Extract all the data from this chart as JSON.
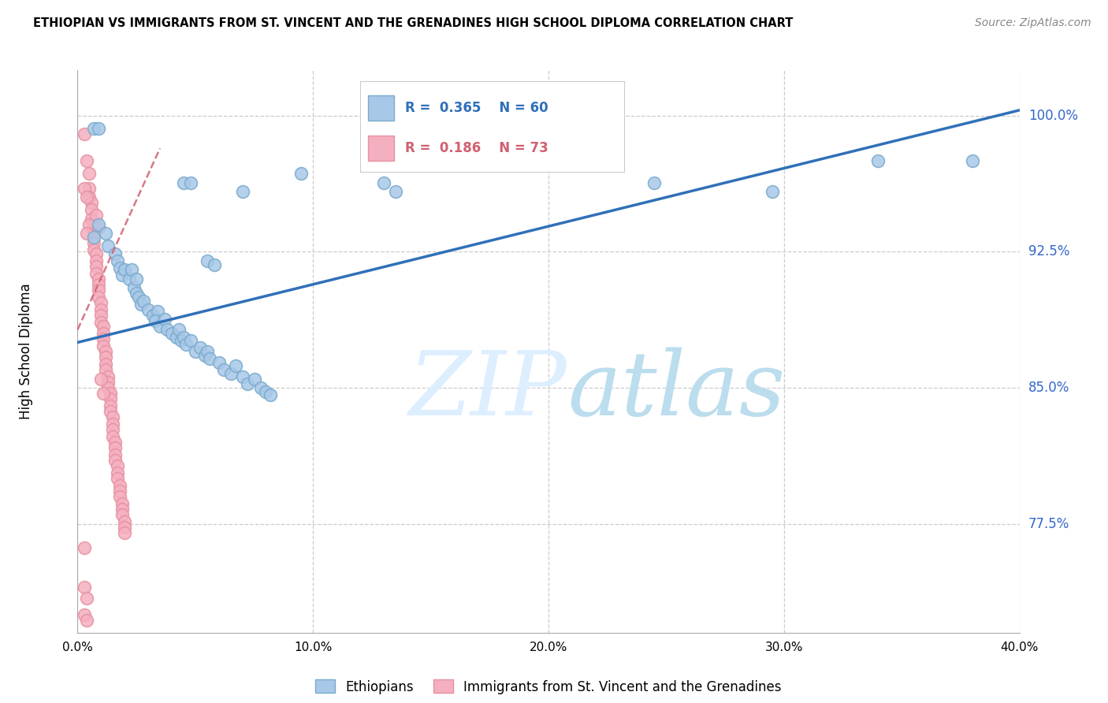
{
  "title": "ETHIOPIAN VS IMMIGRANTS FROM ST. VINCENT AND THE GRENADINES HIGH SCHOOL DIPLOMA CORRELATION CHART",
  "source": "Source: ZipAtlas.com",
  "ylabel": "High School Diploma",
  "yticks": [
    0.775,
    0.85,
    0.925,
    1.0
  ],
  "ytick_labels": [
    "77.5%",
    "85.0%",
    "92.5%",
    "100.0%"
  ],
  "xmin": 0.0,
  "xmax": 0.4,
  "ymin": 0.715,
  "ymax": 1.025,
  "R_blue": 0.365,
  "N_blue": 60,
  "R_pink": 0.186,
  "N_pink": 73,
  "blue_color": "#a8c8e8",
  "blue_edge_color": "#7aaacc",
  "blue_line_color": "#3070b8",
  "pink_color": "#f4b0c0",
  "pink_edge_color": "#e890a0",
  "pink_line_color": "#d06070",
  "legend_label_blue": "Ethiopians",
  "legend_label_pink": "Immigrants from St. Vincent and the Grenadines",
  "blue_line_x0": 0.0,
  "blue_line_y0": 0.875,
  "blue_line_x1": 0.4,
  "blue_line_y1": 1.003,
  "pink_line_x0": 0.0,
  "pink_line_x1": 0.035,
  "pink_line_y0": 0.882,
  "pink_line_y1": 0.982,
  "blue_dots": [
    [
      0.007,
      0.993
    ],
    [
      0.009,
      0.993
    ],
    [
      0.045,
      0.963
    ],
    [
      0.048,
      0.963
    ],
    [
      0.007,
      0.933
    ],
    [
      0.009,
      0.94
    ],
    [
      0.012,
      0.935
    ],
    [
      0.013,
      0.928
    ],
    [
      0.016,
      0.924
    ],
    [
      0.017,
      0.92
    ],
    [
      0.018,
      0.916
    ],
    [
      0.019,
      0.912
    ],
    [
      0.02,
      0.915
    ],
    [
      0.022,
      0.91
    ],
    [
      0.024,
      0.905
    ],
    [
      0.025,
      0.902
    ],
    [
      0.026,
      0.9
    ],
    [
      0.027,
      0.896
    ],
    [
      0.028,
      0.898
    ],
    [
      0.03,
      0.893
    ],
    [
      0.032,
      0.89
    ],
    [
      0.034,
      0.892
    ],
    [
      0.033,
      0.887
    ],
    [
      0.035,
      0.884
    ],
    [
      0.037,
      0.888
    ],
    [
      0.038,
      0.882
    ],
    [
      0.04,
      0.88
    ],
    [
      0.042,
      0.878
    ],
    [
      0.043,
      0.882
    ],
    [
      0.044,
      0.876
    ],
    [
      0.045,
      0.878
    ],
    [
      0.046,
      0.874
    ],
    [
      0.048,
      0.876
    ],
    [
      0.05,
      0.87
    ],
    [
      0.052,
      0.872
    ],
    [
      0.054,
      0.868
    ],
    [
      0.055,
      0.87
    ],
    [
      0.056,
      0.866
    ],
    [
      0.06,
      0.864
    ],
    [
      0.062,
      0.86
    ],
    [
      0.065,
      0.858
    ],
    [
      0.067,
      0.862
    ],
    [
      0.07,
      0.856
    ],
    [
      0.072,
      0.852
    ],
    [
      0.075,
      0.855
    ],
    [
      0.078,
      0.85
    ],
    [
      0.08,
      0.848
    ],
    [
      0.082,
      0.846
    ],
    [
      0.023,
      0.915
    ],
    [
      0.025,
      0.91
    ],
    [
      0.055,
      0.92
    ],
    [
      0.058,
      0.918
    ],
    [
      0.095,
      0.968
    ],
    [
      0.07,
      0.958
    ],
    [
      0.13,
      0.963
    ],
    [
      0.135,
      0.958
    ],
    [
      0.245,
      0.963
    ],
    [
      0.295,
      0.958
    ],
    [
      0.34,
      0.975
    ],
    [
      0.38,
      0.975
    ]
  ],
  "pink_dots": [
    [
      0.003,
      0.99
    ],
    [
      0.004,
      0.975
    ],
    [
      0.005,
      0.968
    ],
    [
      0.005,
      0.96
    ],
    [
      0.005,
      0.955
    ],
    [
      0.006,
      0.952
    ],
    [
      0.006,
      0.948
    ],
    [
      0.006,
      0.943
    ],
    [
      0.007,
      0.94
    ],
    [
      0.007,
      0.935
    ],
    [
      0.007,
      0.93
    ],
    [
      0.007,
      0.926
    ],
    [
      0.008,
      0.924
    ],
    [
      0.008,
      0.92
    ],
    [
      0.008,
      0.917
    ],
    [
      0.008,
      0.913
    ],
    [
      0.009,
      0.91
    ],
    [
      0.009,
      0.907
    ],
    [
      0.009,
      0.904
    ],
    [
      0.009,
      0.9
    ],
    [
      0.01,
      0.897
    ],
    [
      0.01,
      0.893
    ],
    [
      0.01,
      0.89
    ],
    [
      0.01,
      0.886
    ],
    [
      0.011,
      0.884
    ],
    [
      0.011,
      0.88
    ],
    [
      0.011,
      0.877
    ],
    [
      0.011,
      0.873
    ],
    [
      0.012,
      0.87
    ],
    [
      0.012,
      0.867
    ],
    [
      0.012,
      0.863
    ],
    [
      0.012,
      0.86
    ],
    [
      0.013,
      0.856
    ],
    [
      0.013,
      0.853
    ],
    [
      0.013,
      0.85
    ],
    [
      0.014,
      0.847
    ],
    [
      0.014,
      0.844
    ],
    [
      0.014,
      0.84
    ],
    [
      0.014,
      0.837
    ],
    [
      0.015,
      0.834
    ],
    [
      0.015,
      0.83
    ],
    [
      0.015,
      0.827
    ],
    [
      0.015,
      0.823
    ],
    [
      0.016,
      0.82
    ],
    [
      0.016,
      0.817
    ],
    [
      0.016,
      0.813
    ],
    [
      0.016,
      0.81
    ],
    [
      0.017,
      0.807
    ],
    [
      0.017,
      0.803
    ],
    [
      0.017,
      0.8
    ],
    [
      0.018,
      0.796
    ],
    [
      0.018,
      0.793
    ],
    [
      0.018,
      0.79
    ],
    [
      0.019,
      0.786
    ],
    [
      0.019,
      0.783
    ],
    [
      0.019,
      0.78
    ],
    [
      0.02,
      0.776
    ],
    [
      0.02,
      0.773
    ],
    [
      0.02,
      0.77
    ],
    [
      0.003,
      0.96
    ],
    [
      0.004,
      0.955
    ],
    [
      0.005,
      0.94
    ],
    [
      0.004,
      0.935
    ],
    [
      0.008,
      0.945
    ],
    [
      0.009,
      0.938
    ],
    [
      0.01,
      0.855
    ],
    [
      0.011,
      0.847
    ],
    [
      0.003,
      0.74
    ],
    [
      0.004,
      0.734
    ],
    [
      0.003,
      0.725
    ],
    [
      0.004,
      0.722
    ],
    [
      0.003,
      0.762
    ]
  ]
}
